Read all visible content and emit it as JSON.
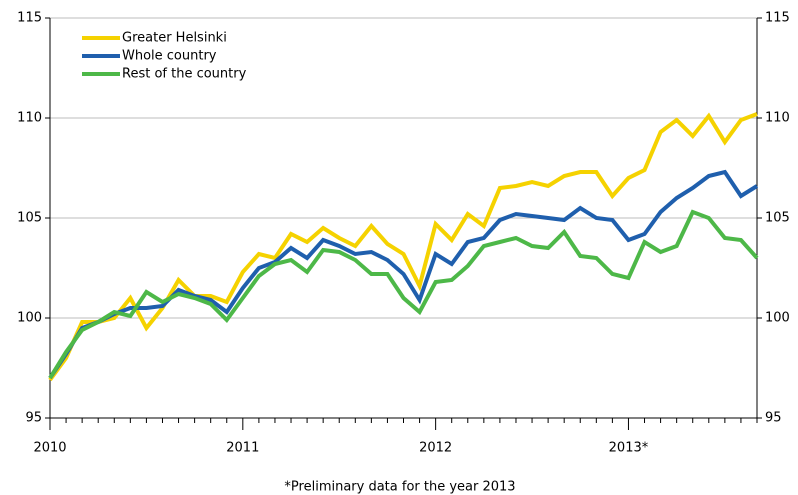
{
  "chart_data": {
    "type": "line",
    "categories": [
      "2010",
      null,
      null,
      null,
      null,
      null,
      null,
      null,
      null,
      null,
      null,
      null,
      "2011",
      null,
      null,
      null,
      null,
      null,
      null,
      null,
      null,
      null,
      null,
      null,
      "2012",
      null,
      null,
      null,
      null,
      null,
      null,
      null,
      null,
      null,
      null,
      null,
      "2013*",
      null,
      null,
      null,
      null,
      null,
      null,
      null,
      null
    ],
    "series": [
      {
        "name": "Greater Helsinki",
        "color": "#f5d200",
        "values": [
          96.9,
          98.0,
          99.8,
          99.8,
          100.0,
          101.0,
          99.5,
          100.5,
          101.9,
          101.1,
          101.1,
          100.8,
          102.3,
          103.2,
          103.0,
          104.2,
          103.8,
          104.5,
          104.0,
          103.6,
          104.6,
          103.7,
          103.2,
          101.6,
          104.7,
          103.9,
          105.2,
          104.6,
          106.5,
          106.6,
          106.8,
          106.6,
          107.1,
          107.3,
          107.3,
          106.1,
          107.0,
          107.4,
          109.3,
          109.9,
          109.1,
          110.1,
          108.8,
          109.9,
          110.2
        ]
      },
      {
        "name": "Whole country",
        "color": "#1f5fad",
        "values": [
          97.0,
          98.2,
          99.5,
          99.8,
          100.2,
          100.5,
          100.5,
          100.6,
          101.4,
          101.1,
          100.9,
          100.3,
          101.5,
          102.5,
          102.8,
          103.5,
          103.0,
          103.9,
          103.6,
          103.2,
          103.3,
          102.9,
          102.2,
          100.9,
          103.2,
          102.7,
          103.8,
          104.0,
          104.9,
          105.2,
          105.1,
          105.0,
          104.9,
          105.5,
          105.0,
          104.9,
          103.9,
          104.2,
          105.3,
          106.0,
          106.5,
          107.1,
          107.3,
          106.1,
          106.6
        ]
      },
      {
        "name": "Rest of the country",
        "color": "#4db848",
        "values": [
          97.0,
          98.3,
          99.4,
          99.8,
          100.3,
          100.1,
          101.3,
          100.8,
          101.2,
          101.0,
          100.7,
          99.9,
          101.0,
          102.1,
          102.7,
          102.9,
          102.3,
          103.4,
          103.3,
          102.9,
          102.2,
          102.2,
          101.0,
          100.3,
          101.8,
          101.9,
          102.6,
          103.6,
          103.8,
          104.0,
          103.6,
          103.5,
          104.3,
          103.1,
          103.0,
          102.2,
          102.0,
          103.8,
          103.3,
          103.6,
          105.3,
          105.0,
          104.0,
          103.9,
          103.0
        ]
      }
    ],
    "ylim": [
      95,
      115
    ],
    "yticks": [
      95,
      100,
      105,
      110,
      115
    ],
    "grid": true,
    "legend": "top-left",
    "footnote": "*Preliminary data for the year 2013"
  }
}
